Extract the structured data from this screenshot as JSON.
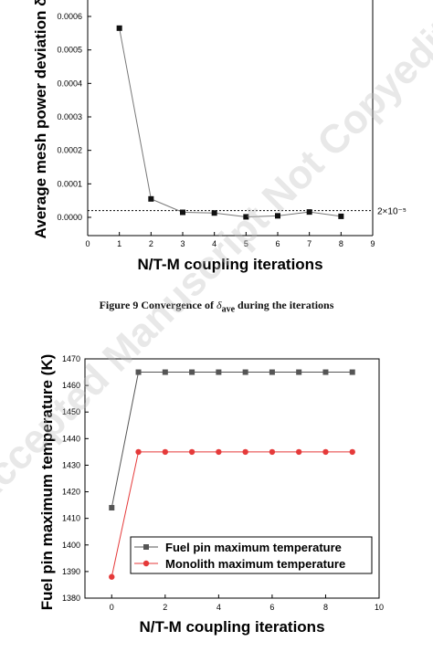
{
  "figure_caption": {
    "prefix": "Figure 9 Convergence of",
    "symbol": "δ",
    "subscript": "ave",
    "suffix": "during the iterations"
  },
  "watermark_text": "Accepted Manuscript Not Copyedited",
  "chart_data": [
    {
      "type": "line",
      "title": "",
      "xlabel": "N/T-M coupling iterations",
      "ylabel": "Average mesh power deviation δ",
      "xlim": [
        0,
        9
      ],
      "ylim": [
        0,
        0.0006
      ],
      "x_ticks": [
        0,
        1,
        2,
        3,
        4,
        5,
        6,
        7,
        8,
        9
      ],
      "y_ticks": [
        0.0,
        0.0001,
        0.0002,
        0.0003,
        0.0004,
        0.0005,
        0.0006
      ],
      "y_tick_labels": [
        "0.0000",
        "0.0001",
        "0.0002",
        "0.0003",
        "0.0004",
        "0.0005",
        "0.0006"
      ],
      "series": [
        {
          "x": [
            1,
            2,
            3,
            4,
            5,
            6,
            7,
            8
          ],
          "values": [
            0.000565,
            5.5e-05,
            1.5e-05,
            1.3e-05,
            1.5e-06,
            4.5e-06,
            1.6e-05,
            3e-06
          ],
          "color": "#111111",
          "line_color": "#777777",
          "marker": "square"
        }
      ],
      "reference_line": {
        "value": 2e-05,
        "label": "2×10⁻⁵",
        "style": "dotted"
      },
      "grid": false
    },
    {
      "type": "line",
      "title": "",
      "xlabel": "N/T-M coupling iterations",
      "ylabel": "Fuel pin maximum temperature (K)",
      "xlim": [
        -1,
        10
      ],
      "ylim": [
        1380,
        1470
      ],
      "x_ticks": [
        0,
        2,
        4,
        6,
        8,
        10
      ],
      "y_ticks": [
        1380,
        1390,
        1400,
        1410,
        1420,
        1430,
        1440,
        1450,
        1460,
        1470
      ],
      "legend_position": "bottom-right",
      "series": [
        {
          "name": "Fuel pin maximum temperature",
          "x": [
            0,
            1,
            2,
            3,
            4,
            5,
            6,
            7,
            8,
            9
          ],
          "values": [
            1414,
            1465,
            1465,
            1465,
            1465,
            1465,
            1465,
            1465,
            1465,
            1465
          ],
          "color": "#555555",
          "marker": "square"
        },
        {
          "name": "Monolith maximum temperature",
          "x": [
            0,
            1,
            2,
            3,
            4,
            5,
            6,
            7,
            8,
            9
          ],
          "values": [
            1388,
            1435,
            1435,
            1435,
            1435,
            1435,
            1435,
            1435,
            1435,
            1435
          ],
          "color": "#e53a3a",
          "marker": "circle"
        }
      ],
      "grid": false
    }
  ]
}
